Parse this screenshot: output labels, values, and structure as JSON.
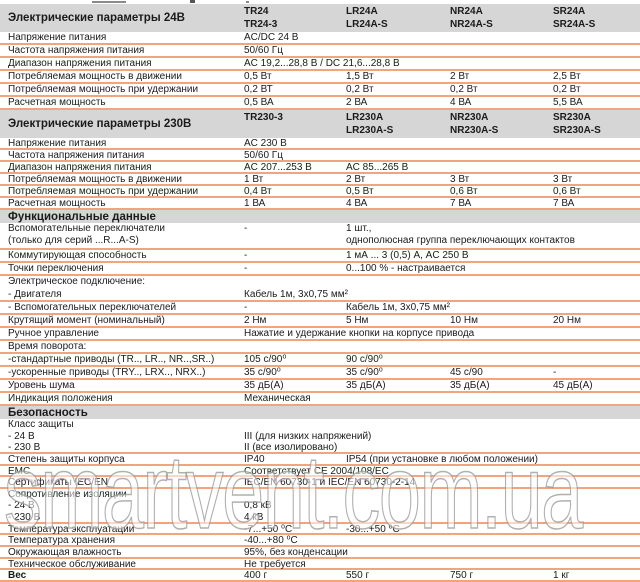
{
  "watermark": "smartvent.com.ua",
  "sections": [
    {
      "title": "Электрические параметры 24В",
      "models": [
        [
          "TR24",
          "TR24-3"
        ],
        [
          "LR24A",
          "LR24A-S"
        ],
        [
          "NR24A",
          "NR24A-S"
        ],
        [
          "SR24A",
          "SR24A-S"
        ]
      ],
      "rows": [
        {
          "label": "Напряжение питания",
          "values": [
            "AC/DC 24 В",
            "",
            "",
            ""
          ]
        },
        {
          "label": "Частота напряжения питания",
          "values": [
            "50/60 Гц",
            "",
            "",
            ""
          ]
        },
        {
          "label": "Диапазон напряжения питания",
          "values": [
            "AC 19,2...28,8 В / DC 21,6...28,8 В",
            "",
            "",
            ""
          ]
        },
        {
          "label": "Потребляемая мощность в движении",
          "values": [
            "0,5 Вт",
            "1,5 Вт",
            "2 Вт",
            "2,5 Вт"
          ]
        },
        {
          "label": "Потребляемая мощность при удержании",
          "values": [
            "0,2 ВТ",
            "0,2 Вт",
            "0,2 Вт",
            "0,2 Вт"
          ]
        },
        {
          "label": "Расчетная мощность",
          "values": [
            "0,5 ВА",
            "2 ВА",
            "4 ВА",
            "5,5 ВА"
          ]
        }
      ]
    },
    {
      "title": "Электрические параметры 230В",
      "models": [
        [
          "TR230-3"
        ],
        [
          "LR230A",
          "LR230A-S"
        ],
        [
          "NR230A",
          "NR230A-S"
        ],
        [
          "SR230A",
          "SR230A-S"
        ]
      ],
      "rows": [
        {
          "label": "Напряжение питания",
          "values": [
            "AC 230 В",
            "",
            "",
            ""
          ]
        },
        {
          "label": "Частота напряжения питания",
          "values": [
            "50/60 Гц",
            "",
            "",
            ""
          ]
        },
        {
          "label": "Диапазон напряжения питания",
          "values": [
            "AC 207...253 В",
            "AC 85...265 В",
            "",
            ""
          ]
        },
        {
          "label": "Потребляемая мощность в движении",
          "values": [
            "1 Вт",
            "2 Вт",
            "3 Вт",
            "3 Вт"
          ]
        },
        {
          "label": "Потребляемая мощность при удержании",
          "values": [
            "0,4 Вт",
            "0,5 Вт",
            "0,6 Вт",
            "0,6 Вт"
          ]
        },
        {
          "label": "Расчетная мощность",
          "values": [
            "1 ВА",
            "4 ВА",
            "7 ВА",
            "7 ВА"
          ]
        }
      ]
    },
    {
      "title": "Функциональные данные",
      "rows": [
        {
          "label": [
            "Вспомогательные переключатели",
            "(только для серий ...R...A-S)"
          ],
          "tall": true,
          "values": [
            "-",
            [
              "1 шт.,",
              "однополюсная группа переключающих контактов"
            ],
            "",
            ""
          ]
        },
        {
          "label": "Коммутирующая способность",
          "values": [
            "-",
            "1 мА ... 3 (0,5) А, AC 250 В",
            "",
            ""
          ]
        },
        {
          "label": "Точки переключения",
          "values": [
            "-",
            "0...100 % - настраивается",
            "",
            ""
          ]
        },
        {
          "label": "Электрическое подключение:",
          "sep": false,
          "values": [
            "",
            "",
            "",
            ""
          ]
        },
        {
          "label": "- Двигателя",
          "values": [
            "Кабель 1м, 3х0,75 мм²",
            "",
            "",
            ""
          ]
        },
        {
          "label": "- Вспомогательных переключателей",
          "values": [
            "-",
            "Кабель 1м, 3х0,75 мм²",
            "",
            ""
          ]
        },
        {
          "label": "Крутящий момент (номинальный)",
          "values": [
            "2 Нм",
            "5 Нм",
            "10 Нм",
            "20 Нм"
          ]
        },
        {
          "label": "Ручное управление",
          "values": [
            "Нажатие и удержание кнопки на корпусе привода",
            "",
            "",
            ""
          ]
        },
        {
          "label": "Время поворота:",
          "values": [
            "",
            "",
            "",
            ""
          ]
        },
        {
          "label": "-стандартные приводы (TR.., LR.., NR..,SR..)",
          "values": [
            "105 с/90⁰",
            "90 с/90⁰",
            "",
            ""
          ]
        },
        {
          "label": "-ускоренные приводы (TRY.., LRX.., NRX..)",
          "values": [
            "35 с/90⁰",
            "35 с/90⁰",
            "45 с/90",
            "-"
          ]
        },
        {
          "label": "Уровень шума",
          "values": [
            "35 дБ(А)",
            "35 дБ(А)",
            "35 дБ(А)",
            "45 дБ(А)"
          ]
        },
        {
          "label": "Индикация положения",
          "values": [
            "Механическая",
            "",
            "",
            ""
          ]
        }
      ]
    },
    {
      "title": "Безопасность",
      "rows": [
        {
          "label": "Класс защиты",
          "sep": false,
          "values": [
            "",
            "",
            "",
            ""
          ]
        },
        {
          "label": "- 24 В",
          "sep": false,
          "values": [
            "III (для низких напряжений)",
            "",
            "",
            ""
          ]
        },
        {
          "label": "- 230 В",
          "values": [
            "II (все изолировано)",
            "",
            "",
            ""
          ]
        },
        {
          "label": "Степень защиты корпуса",
          "values": [
            "IP40",
            "IP54 (при установке в любом положении)",
            "",
            ""
          ]
        },
        {
          "label": "EMC",
          "values": [
            "Соответствует СЕ 2004/108/EC",
            "",
            "",
            ""
          ]
        },
        {
          "label": "Сертификаты  IEC/EN",
          "values": [
            "IEC/EN 60730-1 и IEC/EN 60730-2-14",
            "",
            "",
            ""
          ]
        },
        {
          "label": "Сопротивление изоляции",
          "sep": false,
          "values": [
            "",
            "",
            "",
            ""
          ]
        },
        {
          "label": "- 24 В",
          "sep": false,
          "values": [
            "0,8 кВ",
            "",
            "",
            ""
          ]
        },
        {
          "label": "- 230 В",
          "values": [
            "4 кВ",
            "",
            "",
            ""
          ]
        },
        {
          "label": "Температура эксплуатации",
          "values": [
            "-7...+50 ⁰С",
            "-30...+50 ⁰С",
            "",
            ""
          ]
        },
        {
          "label": "Температура хранения",
          "values": [
            "-40...+80 ⁰С",
            "",
            "",
            ""
          ]
        },
        {
          "label": "Окружающая влажность",
          "values": [
            "95%, без конденсации",
            "",
            "",
            ""
          ]
        },
        {
          "label": "Техническое обслуживание",
          "values": [
            "Не требуется",
            "",
            "",
            ""
          ]
        },
        {
          "label": "Вес",
          "bold": true,
          "values": [
            "400 г",
            "550 г",
            "750 г",
            "1 кг"
          ]
        }
      ]
    }
  ]
}
